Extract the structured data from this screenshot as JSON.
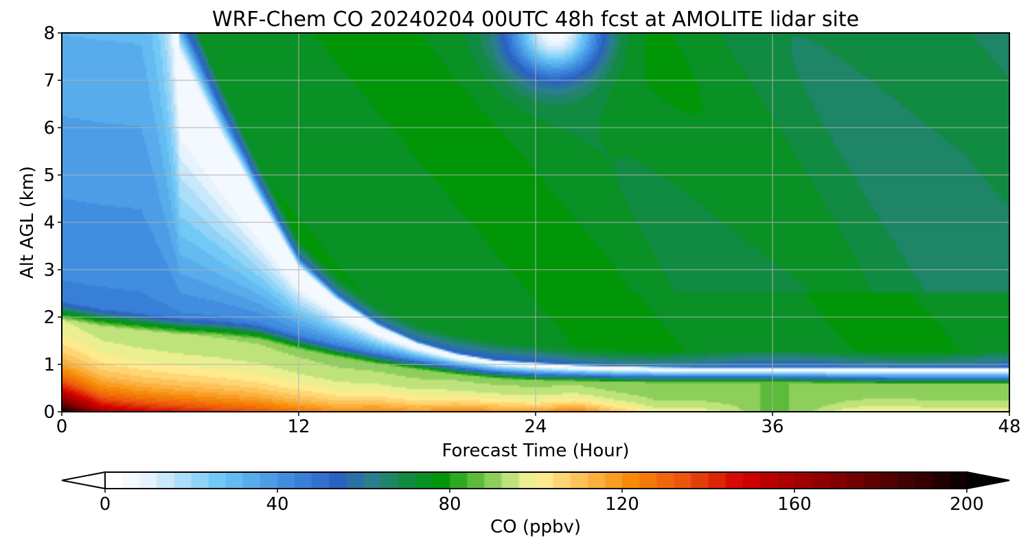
{
  "chart_data": {
    "type": "heatmap",
    "title": "WRF-Chem CO  20240204 00UTC 48h fcst at AMOLITE lidar site",
    "xlabel": "Forecast Time (Hour)",
    "ylabel": "Alt AGL (km)",
    "xlim": [
      0,
      48
    ],
    "ylim": [
      0,
      8
    ],
    "xticks": [
      "0",
      "12",
      "24",
      "36",
      "48"
    ],
    "yticks": [
      "0",
      "1",
      "2",
      "3",
      "4",
      "5",
      "6",
      "7",
      "8"
    ],
    "grid": true,
    "colorbar": {
      "label": "CO  (ppbv)",
      "range": [
        0,
        200
      ],
      "ticks": [
        "0",
        "40",
        "80",
        "120",
        "160",
        "200"
      ],
      "extend": "both",
      "stops": [
        {
          "v": 0,
          "c": "#ffffff"
        },
        {
          "v": 8,
          "c": "#e6f3fc"
        },
        {
          "v": 25,
          "c": "#6cc6f6"
        },
        {
          "v": 42,
          "c": "#3b86de"
        },
        {
          "v": 52,
          "c": "#2b62c2"
        },
        {
          "v": 60,
          "c": "#2b7e8c"
        },
        {
          "v": 68,
          "c": "#118b42"
        },
        {
          "v": 76,
          "c": "#009608"
        },
        {
          "v": 84,
          "c": "#5dbb3a"
        },
        {
          "v": 92,
          "c": "#bfe37c"
        },
        {
          "v": 98,
          "c": "#fff59a"
        },
        {
          "v": 108,
          "c": "#fdc35a"
        },
        {
          "v": 120,
          "c": "#f78a08"
        },
        {
          "v": 132,
          "c": "#ec560c"
        },
        {
          "v": 146,
          "c": "#d20000"
        },
        {
          "v": 166,
          "c": "#8a0000"
        },
        {
          "v": 186,
          "c": "#3a0000"
        },
        {
          "v": 200,
          "c": "#000000"
        }
      ]
    },
    "field": {
      "x": [
        0,
        2,
        4,
        6,
        8,
        10,
        12,
        14,
        16,
        18,
        20,
        22,
        24,
        26,
        28,
        30,
        32,
        34,
        36,
        38,
        40,
        42,
        44,
        46,
        48
      ],
      "y": [
        0,
        0.1,
        0.2,
        0.3,
        0.4,
        0.5,
        0.6,
        0.7,
        0.8,
        0.9,
        1.0,
        1.1,
        1.2,
        1.4,
        1.6,
        1.8,
        2.0,
        2.2,
        2.4,
        2.6,
        2.8,
        3.0,
        3.3,
        3.6,
        4.0,
        4.5,
        5.0,
        5.5,
        6.0,
        6.5,
        7.0,
        7.5,
        8.0
      ],
      "boundary_km": [
        2.35,
        2.2,
        2.1,
        2.0,
        1.95,
        1.85,
        1.6,
        1.4,
        1.22,
        1.08,
        0.95,
        0.85,
        0.8,
        0.78,
        0.76,
        0.75,
        0.75,
        0.75,
        0.75,
        0.74,
        0.73,
        0.72,
        0.72,
        0.72,
        0.72
      ],
      "front_km": [
        30,
        30,
        30,
        8.5,
        6.6,
        4.9,
        3.3,
        2.5,
        1.9,
        1.5,
        1.25,
        1.1,
        1.05,
        1.0,
        0.98,
        0.96,
        0.95,
        0.95,
        0.95,
        0.95,
        0.95,
        0.95,
        0.95,
        0.95,
        0.95
      ],
      "surface_co": [
        200,
        160,
        150,
        145,
        140,
        135,
        128,
        122,
        125,
        120,
        125,
        122,
        120,
        128,
        112,
        100,
        100,
        95,
        85,
        92,
        100,
        102,
        100,
        100,
        100
      ],
      "top_bubble": {
        "x": 25,
        "y": 8.0,
        "value": 5
      }
    }
  }
}
